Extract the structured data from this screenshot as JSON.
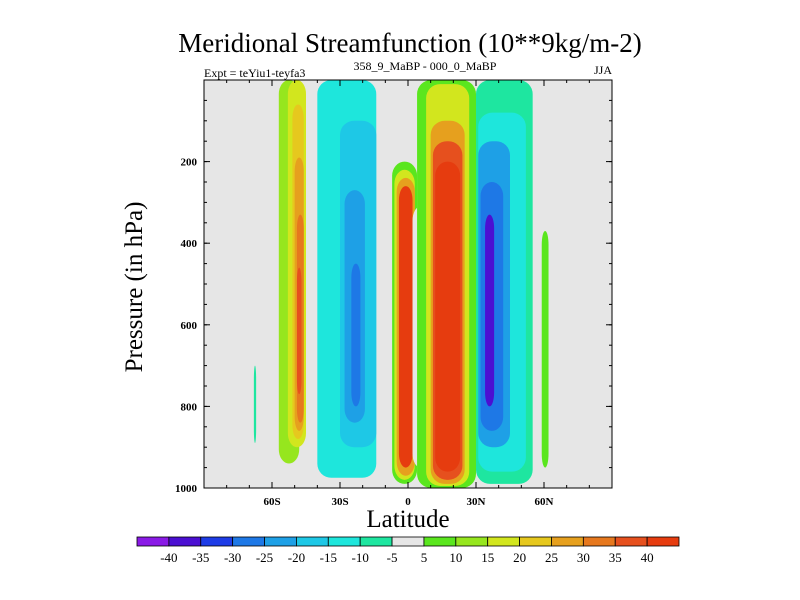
{
  "chart_data": {
    "type": "heatmap",
    "title": "Meridional Streamfunction (10**9kg/m-2)",
    "subtitle_left": "Expt = teYiu1-teyfa3",
    "subtitle_center": "358_9_MaBP - 000_0_MaBP",
    "subtitle_right": "JJA",
    "xlabel": "Latitude",
    "ylabel": "Pressure (in hPa)",
    "xlim": [
      -90,
      90
    ],
    "ylim": [
      1000,
      0
    ],
    "x_ticks": [
      {
        "value": -60,
        "label": "60S"
      },
      {
        "value": -30,
        "label": "30S"
      },
      {
        "value": 0,
        "label": "0"
      },
      {
        "value": 30,
        "label": "30N"
      },
      {
        "value": 60,
        "label": "60N"
      }
    ],
    "y_ticks": [
      {
        "value": 200,
        "label": "200"
      },
      {
        "value": 400,
        "label": "400"
      },
      {
        "value": 600,
        "label": "600"
      },
      {
        "value": 800,
        "label": "800"
      },
      {
        "value": 1000,
        "label": "1000"
      }
    ],
    "colorbar": {
      "labels": [
        "-40",
        "-35",
        "-30",
        "-25",
        "-20",
        "-15",
        "-10",
        "-5",
        "5",
        "10",
        "15",
        "20",
        "25",
        "30",
        "35",
        "40"
      ],
      "colors": [
        "#8a1ae6",
        "#4b0fd2",
        "#1e3ce6",
        "#1e78e6",
        "#1ea0e6",
        "#1ec8e6",
        "#1ee6dc",
        "#1ee6a0",
        "#e6e6e6",
        "#5ae61e",
        "#96e61e",
        "#d2e61e",
        "#e6c81e",
        "#e6a01e",
        "#e6781e",
        "#e6501e",
        "#e63c0f"
      ]
    },
    "cells": [
      {
        "lat": [
          -68,
          -67
        ],
        "p": [
          700,
          890
        ],
        "value": -7
      },
      {
        "lat": [
          -57,
          -48
        ],
        "p": [
          0,
          940
        ],
        "value": 12
      },
      {
        "lat": [
          -53,
          -45
        ],
        "p": [
          0,
          900
        ],
        "value": 17
      },
      {
        "lat": [
          -51,
          -46
        ],
        "p": [
          60,
          880
        ],
        "value": 22
      },
      {
        "lat": [
          -50,
          -46
        ],
        "p": [
          190,
          860
        ],
        "value": 27
      },
      {
        "lat": [
          -49,
          -46
        ],
        "p": [
          330,
          840
        ],
        "value": 32
      },
      {
        "lat": [
          -49,
          -47
        ],
        "p": [
          460,
          770
        ],
        "value": 37
      },
      {
        "lat": [
          -40,
          -14
        ],
        "p": [
          0,
          975
        ],
        "value": -12
      },
      {
        "lat": [
          -30,
          -14
        ],
        "p": [
          100,
          900
        ],
        "value": -17
      },
      {
        "lat": [
          -28,
          -19
        ],
        "p": [
          270,
          840
        ],
        "value": -22
      },
      {
        "lat": [
          -25,
          -21
        ],
        "p": [
          450,
          800
        ],
        "value": -27
      },
      {
        "lat": [
          -9,
          8
        ],
        "p": [
          120,
          990
        ],
        "value": -2
      },
      {
        "lat": [
          -7,
          4
        ],
        "p": [
          200,
          990
        ],
        "value": 7
      },
      {
        "lat": [
          -6,
          3
        ],
        "p": [
          220,
          980
        ],
        "value": 15
      },
      {
        "lat": [
          -5,
          3
        ],
        "p": [
          240,
          970
        ],
        "value": 27
      },
      {
        "lat": [
          -4,
          2
        ],
        "p": [
          260,
          950
        ],
        "value": 42
      },
      {
        "lat": [
          2,
          9
        ],
        "p": [
          310,
          950
        ],
        "value": -2
      },
      {
        "lat": [
          4,
          30
        ],
        "p": [
          0,
          1000
        ],
        "value": 7
      },
      {
        "lat": [
          8,
          27
        ],
        "p": [
          10,
          995
        ],
        "value": 17
      },
      {
        "lat": [
          10,
          25
        ],
        "p": [
          100,
          990
        ],
        "value": 27
      },
      {
        "lat": [
          11,
          24
        ],
        "p": [
          150,
          980
        ],
        "value": 37
      },
      {
        "lat": [
          12,
          23
        ],
        "p": [
          200,
          960
        ],
        "value": 42
      },
      {
        "lat": [
          30,
          55
        ],
        "p": [
          0,
          990
        ],
        "value": -8
      },
      {
        "lat": [
          31,
          52
        ],
        "p": [
          80,
          960
        ],
        "value": -14
      },
      {
        "lat": [
          31,
          45
        ],
        "p": [
          150,
          900
        ],
        "value": -22
      },
      {
        "lat": [
          32,
          42
        ],
        "p": [
          250,
          860
        ],
        "value": -30
      },
      {
        "lat": [
          34,
          38
        ],
        "p": [
          330,
          800
        ],
        "value": -37
      },
      {
        "lat": [
          59,
          62
        ],
        "p": [
          370,
          950
        ],
        "value": 7
      }
    ]
  }
}
